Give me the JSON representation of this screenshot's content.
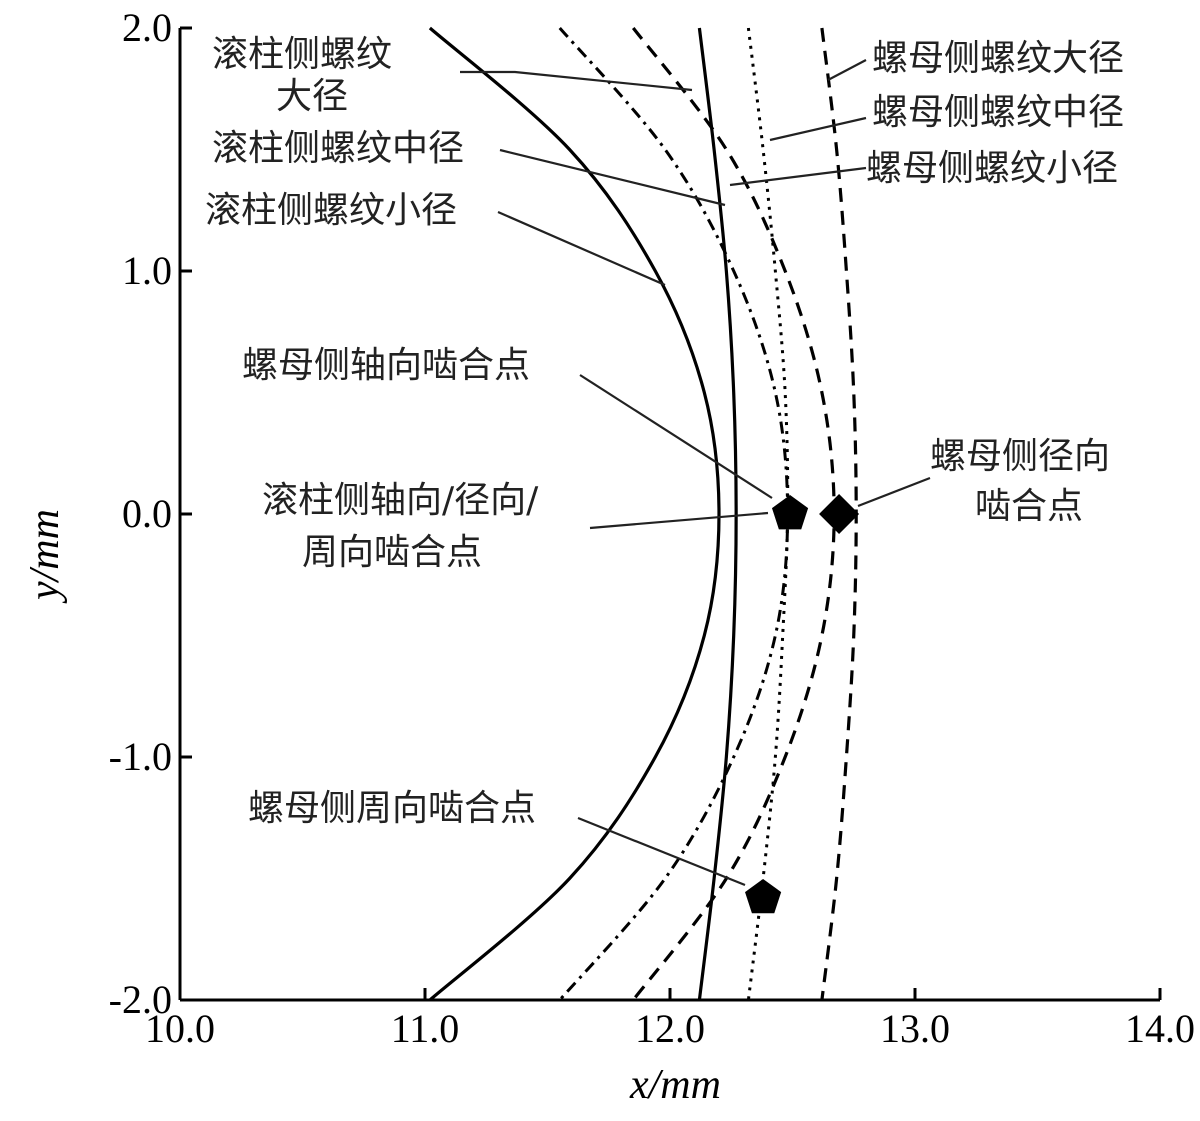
{
  "chart_data": {
    "type": "line",
    "title": "",
    "xlabel": "x/mm",
    "ylabel": "y/mm",
    "xlim": [
      10.0,
      14.0
    ],
    "ylim": [
      -2.0,
      2.0
    ],
    "xticks": [
      "10.0",
      "11.0",
      "12.0",
      "13.0",
      "14.0"
    ],
    "yticks": [
      "2.0",
      "1.0",
      "0.0",
      "-1.0",
      "-2.0"
    ],
    "grid": false,
    "series": [
      {
        "name": "滚柱侧螺纹小径",
        "style": "solid",
        "values": [
          [
            11.02,
            2.0
          ],
          [
            11.59,
            1.5
          ],
          [
            11.94,
            1.0
          ],
          [
            12.14,
            0.5
          ],
          [
            12.2,
            0.0
          ],
          [
            12.14,
            -0.5
          ],
          [
            11.94,
            -1.0
          ],
          [
            11.59,
            -1.5
          ],
          [
            11.02,
            -2.0
          ]
        ]
      },
      {
        "name": "滚柱侧螺纹中径",
        "style": "solid",
        "values": [
          [
            12.12,
            2.0
          ],
          [
            12.18,
            1.5
          ],
          [
            12.23,
            1.0
          ],
          [
            12.26,
            0.5
          ],
          [
            12.27,
            0.0
          ],
          [
            12.26,
            -0.5
          ],
          [
            12.23,
            -1.0
          ],
          [
            12.18,
            -1.5
          ],
          [
            12.12,
            -2.0
          ]
        ]
      },
      {
        "name": "滚柱侧螺纹大径",
        "style": "dash-dot",
        "values": [
          [
            11.55,
            2.0
          ],
          [
            11.98,
            1.5
          ],
          [
            12.26,
            1.0
          ],
          [
            12.43,
            0.5
          ],
          [
            12.48,
            0.0
          ],
          [
            12.43,
            -0.5
          ],
          [
            12.26,
            -1.0
          ],
          [
            11.98,
            -1.5
          ],
          [
            11.55,
            -2.0
          ]
        ]
      },
      {
        "name": "螺母侧螺纹小径",
        "style": "dashed",
        "values": [
          [
            11.85,
            2.0
          ],
          [
            12.23,
            1.5
          ],
          [
            12.47,
            1.0
          ],
          [
            12.62,
            0.5
          ],
          [
            12.67,
            0.0
          ],
          [
            12.62,
            -0.5
          ],
          [
            12.47,
            -1.0
          ],
          [
            12.23,
            -1.5
          ],
          [
            11.85,
            -2.0
          ]
        ]
      },
      {
        "name": "螺母侧螺纹中径",
        "style": "dotted",
        "values": [
          [
            12.32,
            2.0
          ],
          [
            12.38,
            1.5
          ],
          [
            12.43,
            1.0
          ],
          [
            12.47,
            0.5
          ],
          [
            12.48,
            0.0
          ],
          [
            12.46,
            -0.5
          ],
          [
            12.43,
            -1.0
          ],
          [
            12.38,
            -1.5
          ],
          [
            12.32,
            -2.0
          ]
        ]
      },
      {
        "name": "螺母侧螺纹大径",
        "style": "dashed",
        "values": [
          [
            12.62,
            2.0
          ],
          [
            12.68,
            1.5
          ],
          [
            12.72,
            1.0
          ],
          [
            12.75,
            0.5
          ],
          [
            12.76,
            0.0
          ],
          [
            12.75,
            -0.5
          ],
          [
            12.72,
            -1.0
          ],
          [
            12.68,
            -1.5
          ],
          [
            12.62,
            -2.0
          ]
        ]
      }
    ],
    "points": [
      {
        "name": "滚柱侧轴向/径向/周向啮合点",
        "marker": "pentagon",
        "x": 12.49,
        "y": 0.0
      },
      {
        "name": "螺母侧径向啮合点",
        "marker": "diamond",
        "x": 12.69,
        "y": 0.0
      },
      {
        "name": "螺母侧周向啮合点",
        "marker": "pentagon",
        "x": 12.38,
        "y": -1.58
      }
    ],
    "annotations": {
      "roller_major": [
        "滚柱侧螺纹",
        "大径"
      ],
      "roller_pitch": "滚柱侧螺纹中径",
      "roller_minor": "滚柱侧螺纹小径",
      "nut_major": "螺母侧螺纹大径",
      "nut_pitch": "螺母侧螺纹中径",
      "nut_minor": "螺母侧螺纹小径",
      "nut_axial": "螺母侧轴向啮合点",
      "roller_mesh": [
        "滚柱侧轴向/径向/",
        "周向啮合点"
      ],
      "nut_radial": [
        "螺母侧径向",
        "啮合点"
      ],
      "nut_circ": "螺母侧周向啮合点"
    }
  }
}
